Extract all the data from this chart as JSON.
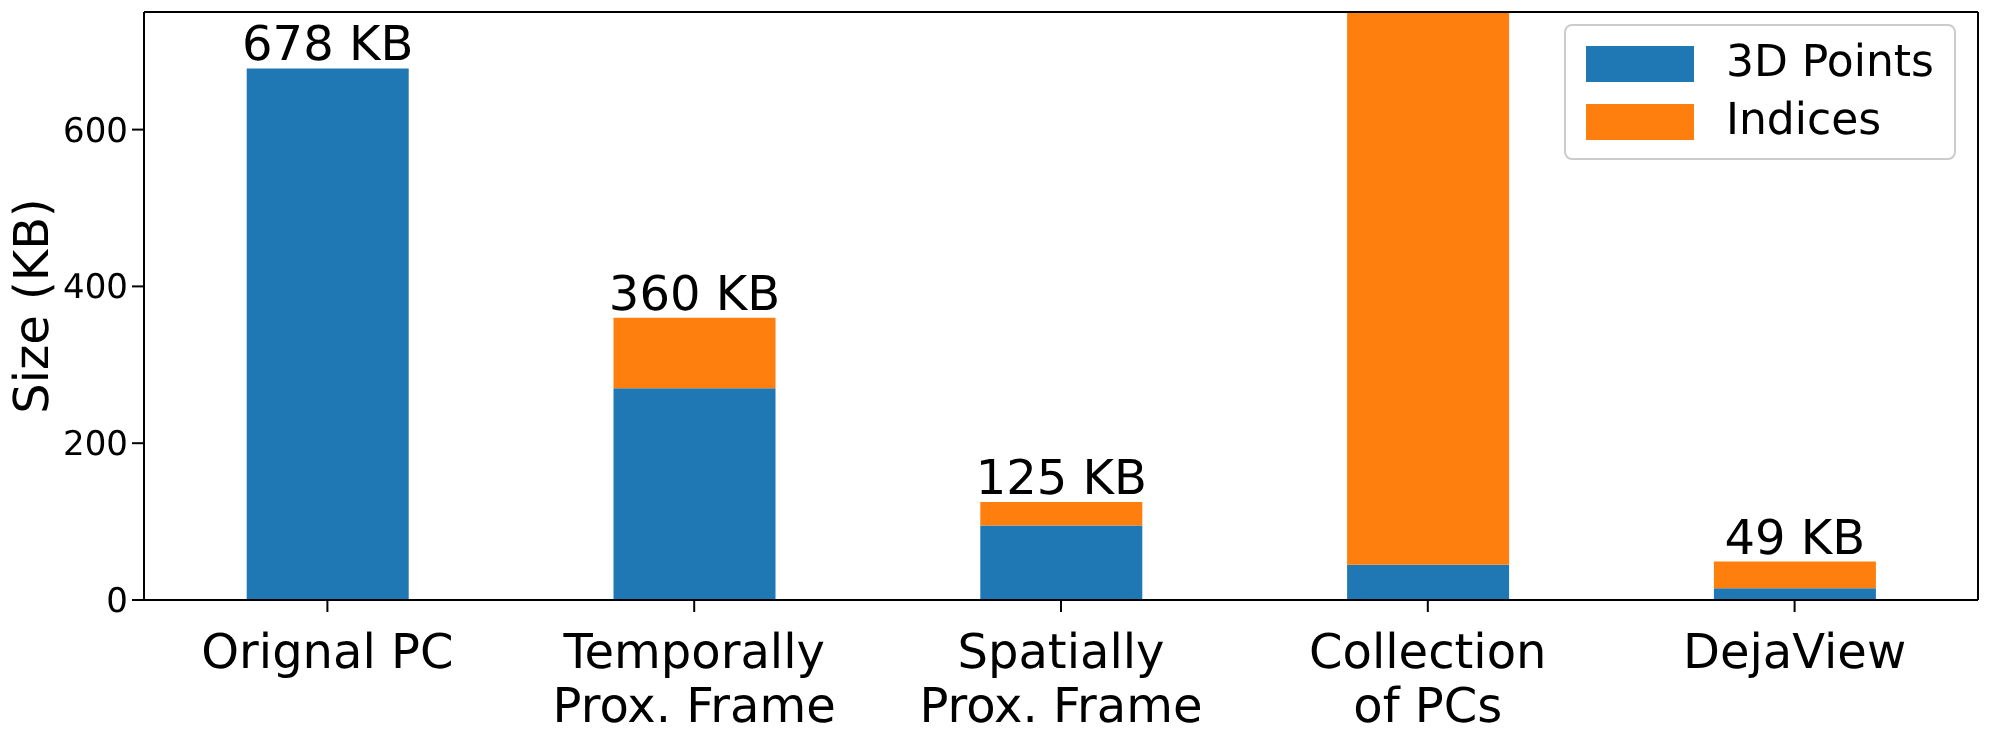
{
  "chart_data": {
    "type": "bar",
    "stacked": true,
    "ylabel": "Size (KB)",
    "categories": [
      "Orignal PC",
      "Temporally\nProx. Frame",
      "Spatially\nProx. Frame",
      "Collection\nof PCs",
      "DejaView"
    ],
    "series": [
      {
        "name": "3D Points",
        "color": "#1f77b4",
        "values": [
          678,
          270,
          95,
          45,
          15
        ]
      },
      {
        "name": "Indices",
        "color": "#ff7f0e",
        "values": [
          0,
          90,
          30,
          705,
          34
        ]
      }
    ],
    "totals": [
      "678 KB",
      "360 KB",
      "125 KB",
      null,
      "49 KB"
    ],
    "ylim": [
      0,
      750
    ],
    "yticks": [
      0,
      200,
      400,
      600
    ],
    "grid": false,
    "legend": "top right"
  }
}
